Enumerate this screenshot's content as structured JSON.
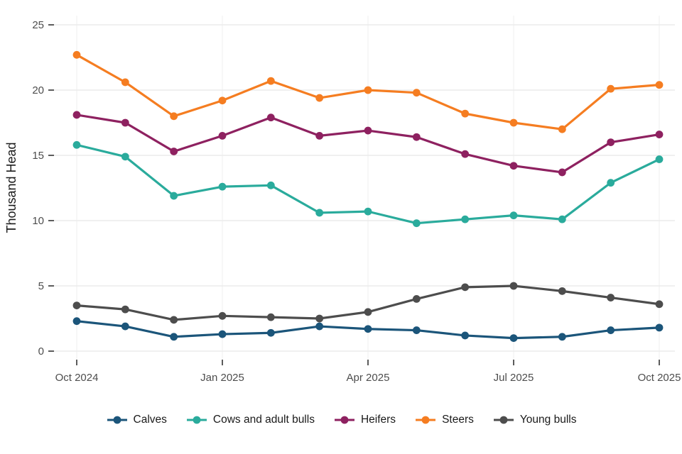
{
  "chart_data": {
    "type": "line",
    "title": "",
    "xlabel": "",
    "ylabel": "Thousand Head",
    "ylim": [
      0,
      25
    ],
    "yticks": [
      0,
      5,
      10,
      15,
      20,
      25
    ],
    "categories": [
      "Oct 2024",
      "Nov 2024",
      "Dec 2024",
      "Jan 2025",
      "Feb 2025",
      "Mar 2025",
      "Apr 2025",
      "May 2025",
      "Jun 2025",
      "Jul 2025",
      "Aug 2025",
      "Sep 2025",
      "Oct 2025"
    ],
    "xtick_labels": [
      "Oct 2024",
      "Jan 2025",
      "Apr 2025",
      "Jul 2025",
      "Oct 2025"
    ],
    "xtick_indices": [
      0,
      3,
      6,
      9,
      12
    ],
    "grid": true,
    "legend_position": "bottom",
    "series": [
      {
        "name": "Calves",
        "color": "#1b557a",
        "values": [
          2.3,
          1.9,
          1.1,
          1.3,
          1.4,
          1.9,
          1.7,
          1.6,
          1.2,
          1.0,
          1.1,
          1.6,
          1.8
        ]
      },
      {
        "name": "Cows and adult bulls",
        "color": "#2aab9c",
        "values": [
          15.8,
          14.9,
          11.9,
          12.6,
          12.7,
          10.6,
          10.7,
          9.8,
          10.1,
          10.4,
          10.1,
          12.9,
          14.7
        ]
      },
      {
        "name": "Heifers",
        "color": "#8e2160",
        "values": [
          18.1,
          17.5,
          15.3,
          16.5,
          17.9,
          16.5,
          16.9,
          16.4,
          15.1,
          14.2,
          13.7,
          16.0,
          16.6
        ]
      },
      {
        "name": "Steers",
        "color": "#f57d21",
        "values": [
          22.7,
          20.6,
          18.0,
          19.2,
          20.7,
          19.4,
          20.0,
          19.8,
          18.2,
          17.5,
          17.0,
          20.1,
          20.4
        ]
      },
      {
        "name": "Young bulls",
        "color": "#4d4d4d",
        "values": [
          3.5,
          3.2,
          2.4,
          2.7,
          2.6,
          2.5,
          3.0,
          4.0,
          4.9,
          5.0,
          4.6,
          4.1,
          3.6
        ]
      }
    ],
    "colors": {
      "grid_h": "#e8e8e8",
      "grid_v": "#efefef",
      "tick": "#333333",
      "tick_label": "#4d4d4d",
      "axis_title": "#1a1a1a",
      "background": "#ffffff"
    }
  }
}
